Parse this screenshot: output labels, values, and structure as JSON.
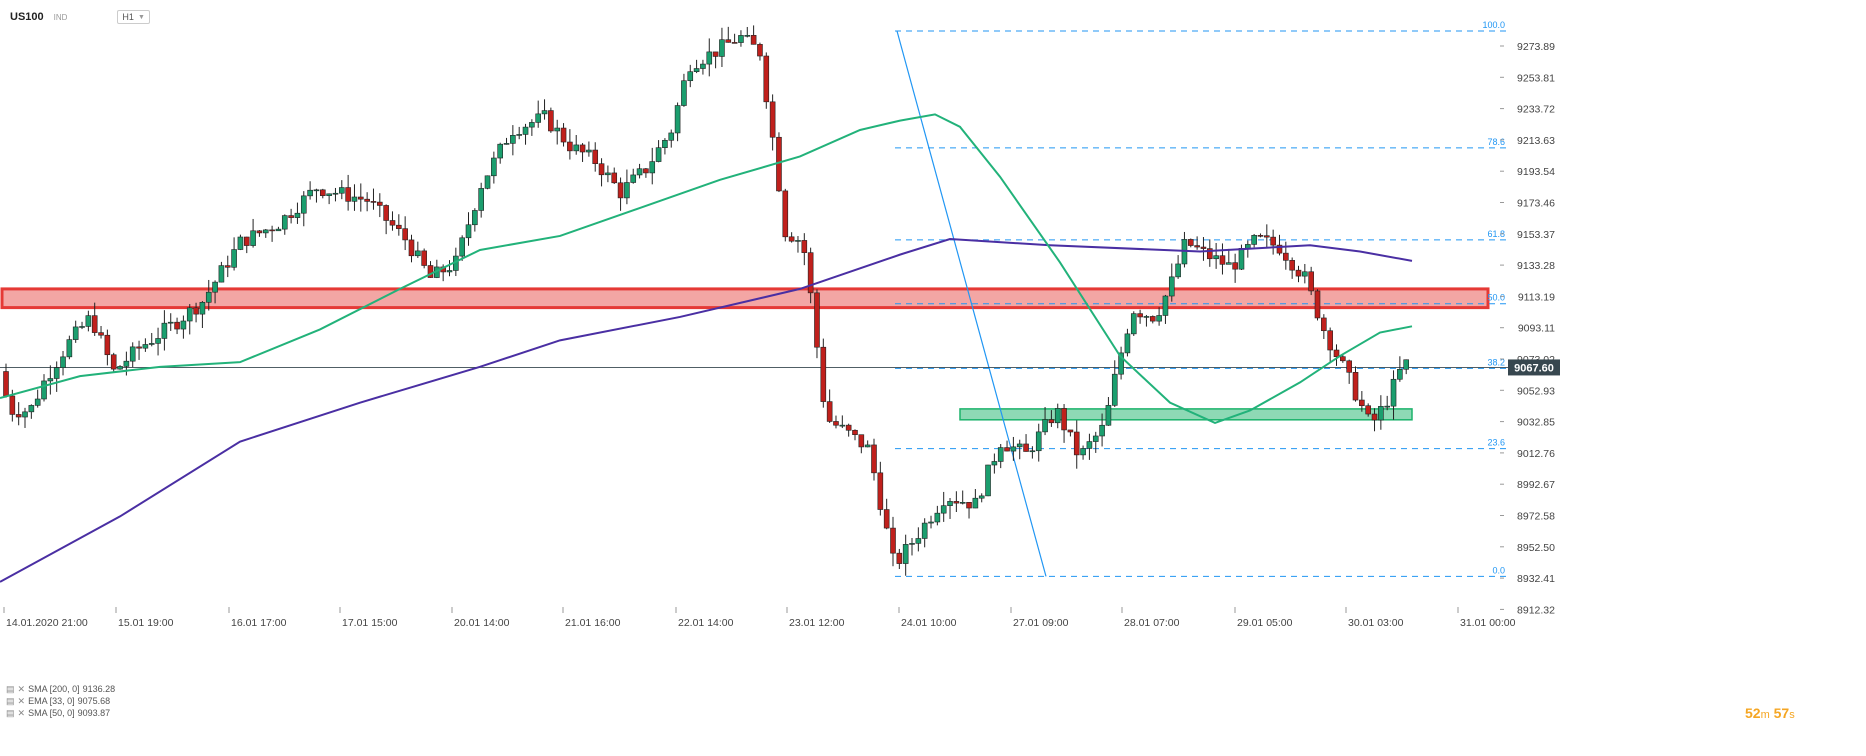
{
  "header": {
    "symbol": "US100",
    "instrument_type": "IND",
    "timeframe": "H1"
  },
  "legend": [
    {
      "label": "SMA [200, 0]",
      "value": "9136.28"
    },
    {
      "label": "EMA [33, 0]",
      "value": "9075.68"
    },
    {
      "label": "SMA [50, 0]",
      "value": "9093.87"
    }
  ],
  "price_axis": [
    "9273.89",
    "9253.81",
    "9233.72",
    "9213.63",
    "9193.54",
    "9173.46",
    "9153.37",
    "9133.28",
    "9113.19",
    "9093.11",
    "9073.02",
    "9052.93",
    "9032.85",
    "9012.76",
    "8992.67",
    "8972.58",
    "8952.50",
    "8932.41",
    "8912.32"
  ],
  "current_price": "9067.60",
  "time_axis": [
    "14.01.2020  21:00",
    "15.01  19:00",
    "16.01  17:00",
    "17.01  15:00",
    "20.01  14:00",
    "21.01  16:00",
    "22.01  14:00",
    "23.01  12:00",
    "24.01  10:00",
    "27.01  09:00",
    "28.01  07:00",
    "29.01  05:00",
    "30.01  03:00",
    "31.01  00:00"
  ],
  "fib_levels": [
    {
      "label": "100.0",
      "price": 9283.5
    },
    {
      "label": "78.6",
      "price": 9208.5
    },
    {
      "label": "61.8",
      "price": 9149.5
    },
    {
      "label": "50.0",
      "price": 9108.5
    },
    {
      "label": "38.2",
      "price": 9067.0
    },
    {
      "label": "23.6",
      "price": 9015.5
    },
    {
      "label": "0.0",
      "price": 8933.5
    }
  ],
  "countdown": {
    "min": "52",
    "min_unit": "m",
    "sec": "57",
    "sec_unit": "s"
  },
  "colors": {
    "bull": "#1b9e6e",
    "bear": "#c0201c",
    "ema": "#22b27a",
    "sma200": "#4a2fa3",
    "fib": "#2196f3",
    "price_line": "#37474f",
    "resist": "#e53935",
    "support": "#1db36b"
  },
  "zones": [
    {
      "type": "resistance",
      "from": 9106,
      "to": 9118
    },
    {
      "type": "support",
      "from": 9034,
      "to": 9041
    }
  ],
  "chart_data": {
    "type": "candlestick",
    "title": "US100",
    "price_range": [
      8912.32,
      9293.97
    ],
    "candles_count": 224
  }
}
